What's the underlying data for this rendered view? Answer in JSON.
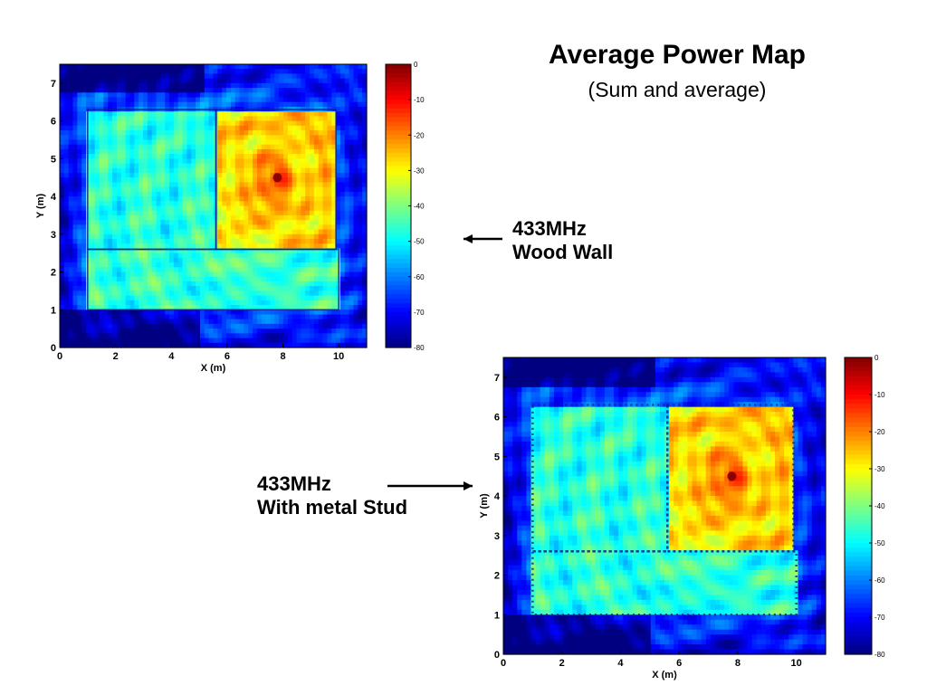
{
  "page": {
    "title": "Average Power Map",
    "subtitle": "(Sum and average)"
  },
  "annotations": [
    {
      "id": "annot1",
      "lines": [
        "433MHz",
        "Wood Wall"
      ],
      "arrow_direction": "left"
    },
    {
      "id": "annot2",
      "lines": [
        "433MHz",
        "With metal Stud"
      ],
      "arrow_direction": "right"
    }
  ],
  "chart_data": [
    {
      "type": "heatmap",
      "name": "wood-wall",
      "xlabel": "X (m)",
      "ylabel": "Y (m)",
      "xlim": [
        0,
        11
      ],
      "ylim": [
        0,
        7.5
      ],
      "xticks": [
        0,
        2,
        4,
        6,
        8,
        10
      ],
      "yticks": [
        0,
        1,
        2,
        3,
        4,
        5,
        6,
        7
      ],
      "colorbar": {
        "range": [
          -80,
          0
        ],
        "ticks": [
          0,
          -10,
          -20,
          -30,
          -40,
          -50,
          -60,
          -70,
          -80
        ],
        "colormap": "jet"
      },
      "source": {
        "x": 7.8,
        "y": 4.5,
        "peak_db": -5
      },
      "rooms": [
        {
          "name": "source-room",
          "x": [
            5.6,
            9.9
          ],
          "y": [
            2.6,
            6.3
          ],
          "level_db": -27
        },
        {
          "name": "left-room",
          "x": [
            1.0,
            5.6
          ],
          "y": [
            2.6,
            6.3
          ],
          "level_db": -47
        },
        {
          "name": "lower-room",
          "x": [
            1.0,
            10.0
          ],
          "y": [
            1.0,
            2.6
          ],
          "level_db": -46
        }
      ],
      "outer_level_db": -62,
      "wall_style": "solid"
    },
    {
      "type": "heatmap",
      "name": "metal-stud",
      "xlabel": "X (m)",
      "ylabel": "Y (m)",
      "xlim": [
        0,
        11
      ],
      "ylim": [
        0,
        7.5
      ],
      "xticks": [
        0,
        2,
        4,
        6,
        8,
        10
      ],
      "yticks": [
        0,
        1,
        2,
        3,
        4,
        5,
        6,
        7
      ],
      "colorbar": {
        "range": [
          -80,
          0
        ],
        "ticks": [
          0,
          -10,
          -20,
          -30,
          -40,
          -50,
          -60,
          -70,
          -80
        ],
        "colormap": "jet"
      },
      "source": {
        "x": 7.8,
        "y": 4.5,
        "peak_db": -5
      },
      "rooms": [
        {
          "name": "source-room",
          "x": [
            5.6,
            9.9
          ],
          "y": [
            2.6,
            6.3
          ],
          "level_db": -27
        },
        {
          "name": "left-room",
          "x": [
            1.0,
            5.6
          ],
          "y": [
            2.6,
            6.3
          ],
          "level_db": -47
        },
        {
          "name": "lower-room",
          "x": [
            1.0,
            10.0
          ],
          "y": [
            1.0,
            2.6
          ],
          "level_db": -47
        }
      ],
      "outer_level_db": -63,
      "wall_style": "dotted"
    }
  ]
}
